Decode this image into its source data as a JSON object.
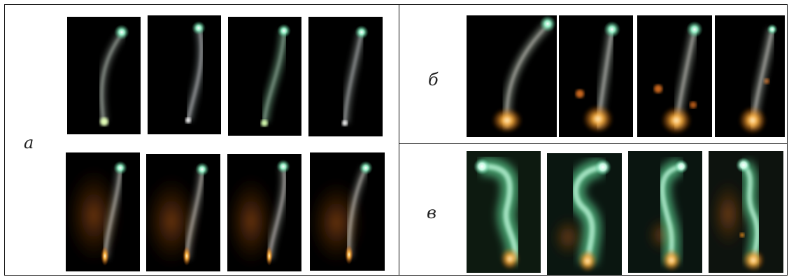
{
  "panels": {
    "a": {
      "label": "а"
    },
    "b": {
      "label": "б"
    },
    "v": {
      "label": "в"
    }
  },
  "colors": {
    "plasma_green": "#8effc9",
    "flame_orange": "#ff9a1f",
    "background": "#000000",
    "border": "#111111"
  }
}
